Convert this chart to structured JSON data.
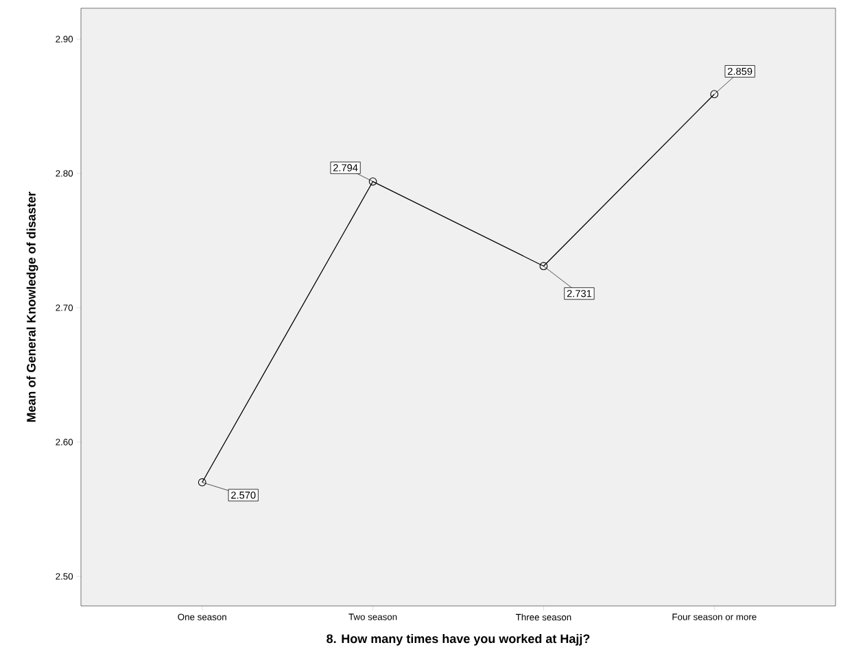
{
  "chart_data": {
    "type": "line",
    "xlabel": "8. How many times have you worked at Hajj?",
    "ylabel": "Mean of General Knowledge of disaster",
    "categories": [
      "One season",
      "Two season",
      "Three season",
      "Four season or more"
    ],
    "series": [
      {
        "color": "#000000",
        "values": [
          2.57,
          2.794,
          2.731,
          2.859
        ],
        "value_labels": [
          "2.570",
          "2.794",
          "2.731",
          "2.859"
        ]
      }
    ],
    "ylim": [
      2.478,
      2.923
    ],
    "yticks": [
      {
        "value": 2.5,
        "label": "2.50"
      },
      {
        "value": 2.6,
        "label": "2.60"
      },
      {
        "value": 2.7,
        "label": "2.70"
      },
      {
        "value": 2.8,
        "label": "2.80"
      },
      {
        "value": 2.9,
        "label": "2.90"
      }
    ],
    "marker": "circle",
    "line_style": "solid",
    "grid": false
  }
}
